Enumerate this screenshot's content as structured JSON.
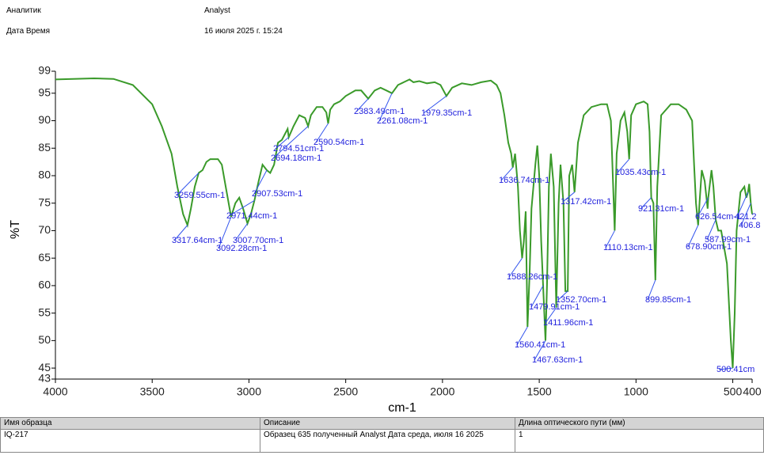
{
  "header": {
    "analyst_label": "Аналитик",
    "analyst": "Analyst",
    "datetime_label": "Дата Время",
    "datetime": "16 июля 2025 г. 15:24"
  },
  "chart_data": {
    "type": "line",
    "xlabel": "cm-1",
    "ylabel": "%T",
    "color": "#3a9a2a",
    "xlim": [
      4000,
      400
    ],
    "ylim": [
      43,
      99
    ],
    "xticks": [
      4000,
      3500,
      3000,
      2500,
      2000,
      1500,
      1000,
      500,
      400
    ],
    "yticks": [
      43,
      45,
      50,
      55,
      60,
      65,
      70,
      75,
      80,
      85,
      90,
      95,
      99
    ],
    "x": [
      4000,
      3800,
      3700,
      3600,
      3500,
      3450,
      3400,
      3370,
      3340,
      3317.64,
      3300,
      3280,
      3259.55,
      3240,
      3220,
      3200,
      3160,
      3140,
      3120,
      3092.28,
      3070,
      3050,
      3030,
      3007.7,
      2990,
      2971.44,
      2950,
      2930,
      2907.53,
      2890,
      2870,
      2850,
      2830,
      2800,
      2794.51,
      2770,
      2740,
      2710,
      2694.18,
      2680,
      2650,
      2620,
      2600,
      2590.54,
      2580,
      2560,
      2530,
      2500,
      2450,
      2420,
      2383.49,
      2350,
      2320,
      2290,
      2261.08,
      2230,
      2200,
      2170,
      2150,
      2120,
      2080,
      2040,
      2010,
      1979.35,
      1950,
      1900,
      1850,
      1800,
      1750,
      1720,
      1700,
      1680,
      1660,
      1645,
      1636.74,
      1625,
      1610,
      1600,
      1588.26,
      1580,
      1570,
      1560.41,
      1550,
      1540,
      1520,
      1510,
      1500,
      1490,
      1479.91,
      1475,
      1467.63,
      1460,
      1450,
      1440,
      1425,
      1411.96,
      1400,
      1390,
      1375,
      1365,
      1352.7,
      1345,
      1330,
      1317.42,
      1300,
      1270,
      1230,
      1180,
      1150,
      1130,
      1115,
      1110.13,
      1100,
      1080,
      1060,
      1045,
      1035.43,
      1025,
      1000,
      960,
      940,
      930,
      921.31,
      910,
      899.85,
      890,
      870,
      820,
      780,
      740,
      710,
      700,
      690,
      678.9,
      670,
      660,
      645,
      630,
      626.54,
      610,
      600,
      587.99,
      575,
      560,
      530,
      510,
      500.41,
      490,
      480,
      460,
      440,
      430,
      421.2,
      415,
      406.8,
      400
    ],
    "values": [
      97.5,
      97.7,
      97.6,
      96.5,
      93,
      89,
      84,
      78,
      73,
      71,
      74,
      78,
      80.5,
      81,
      82.5,
      83,
      83,
      82,
      78,
      72.5,
      75,
      76,
      74,
      71.3,
      73,
      75.5,
      79,
      82,
      81,
      80.5,
      82,
      86,
      86.5,
      88.5,
      87,
      89,
      91,
      90.5,
      89,
      91,
      92.5,
      92.5,
      91.5,
      89.5,
      92,
      93,
      93.5,
      94.5,
      95.5,
      95.5,
      94,
      95.5,
      96,
      95.5,
      95,
      96.5,
      97,
      97.5,
      97,
      97.2,
      96.8,
      97,
      96.5,
      94.5,
      96,
      96.8,
      96.5,
      97,
      97.3,
      96.5,
      95,
      91,
      86,
      84,
      81.5,
      84,
      78,
      70,
      65,
      68,
      73.5,
      52.5,
      62,
      74,
      82,
      85.5,
      80,
      68,
      60,
      56,
      50,
      60,
      78,
      84,
      78,
      56,
      75,
      82,
      75,
      59,
      59,
      80,
      82,
      77,
      86,
      91,
      92.5,
      93,
      93,
      90,
      75,
      70,
      84,
      90,
      91.5,
      88,
      83,
      91,
      93,
      93.5,
      93,
      88,
      76,
      75,
      61,
      78,
      91,
      93,
      93,
      92,
      90,
      82,
      75,
      71,
      76,
      81,
      79,
      74,
      76,
      81,
      78,
      72,
      70,
      70,
      64,
      50,
      45,
      55,
      70,
      77,
      78,
      76,
      77,
      78.5,
      75,
      73
    ],
    "peaks": [
      {
        "x": 3317.64,
        "y": 71,
        "label": "3317.64cm-1"
      },
      {
        "x": 3259.55,
        "y": 80.5,
        "label": "3259.55cm-1"
      },
      {
        "x": 3092.28,
        "y": 72.5,
        "label": "3092.28cm-1"
      },
      {
        "x": 3007.7,
        "y": 71.3,
        "label": "3007.70cm-1"
      },
      {
        "x": 2971.44,
        "y": 75.5,
        "label": "2971.44cm-1"
      },
      {
        "x": 2907.53,
        "y": 81,
        "label": "2907.53cm-1"
      },
      {
        "x": 2794.51,
        "y": 87,
        "label": "2794.51cm-1"
      },
      {
        "x": 2694.18,
        "y": 89,
        "label": "2694.18cm-1"
      },
      {
        "x": 2590.54,
        "y": 89.5,
        "label": "2590.54cm-1"
      },
      {
        "x": 2383.49,
        "y": 94,
        "label": "2383.49cm-1"
      },
      {
        "x": 2261.08,
        "y": 95,
        "label": "2261.08cm-1"
      },
      {
        "x": 1979.35,
        "y": 94.5,
        "label": "1979.35cm-1"
      },
      {
        "x": 1636.74,
        "y": 81.5,
        "label": "1636.74cm-1"
      },
      {
        "x": 1588.26,
        "y": 65,
        "label": "1588.26cm-1"
      },
      {
        "x": 1560.41,
        "y": 52.5,
        "label": "1560.41cm-1"
      },
      {
        "x": 1479.91,
        "y": 60,
        "label": "1479.91cm-1"
      },
      {
        "x": 1467.63,
        "y": 50,
        "label": "1467.63cm-1"
      },
      {
        "x": 1411.96,
        "y": 56,
        "label": "1411.96cm-1"
      },
      {
        "x": 1352.7,
        "y": 59,
        "label": "1352.70cm-1"
      },
      {
        "x": 1317.42,
        "y": 77,
        "label": "1317.42cm-1"
      },
      {
        "x": 1110.13,
        "y": 70,
        "label": "1110.13cm-1"
      },
      {
        "x": 1035.43,
        "y": 83,
        "label": "1035.43cm-1"
      },
      {
        "x": 921.31,
        "y": 76,
        "label": "921.31cm-1"
      },
      {
        "x": 899.85,
        "y": 61,
        "label": "899.85cm-1"
      },
      {
        "x": 678.9,
        "y": 71,
        "label": "678.90cm-1"
      },
      {
        "x": 626.54,
        "y": 76,
        "label": "626.54cm-1"
      },
      {
        "x": 587.99,
        "y": 72,
        "label": "587.99cm-1"
      },
      {
        "x": 500.41,
        "y": 45,
        "label": "500.41cm"
      },
      {
        "x": 421.2,
        "y": 77,
        "label": "421.2"
      },
      {
        "x": 406.8,
        "y": 75,
        "label": "406.8"
      }
    ]
  },
  "table": {
    "columns": [
      "Имя образца",
      "Описание",
      "Длина оптического пути (мм)"
    ],
    "rows": [
      [
        "IQ-217",
        "Образец 635 полученный Analyst Дата среда, июля 16 2025",
        "1"
      ]
    ]
  }
}
